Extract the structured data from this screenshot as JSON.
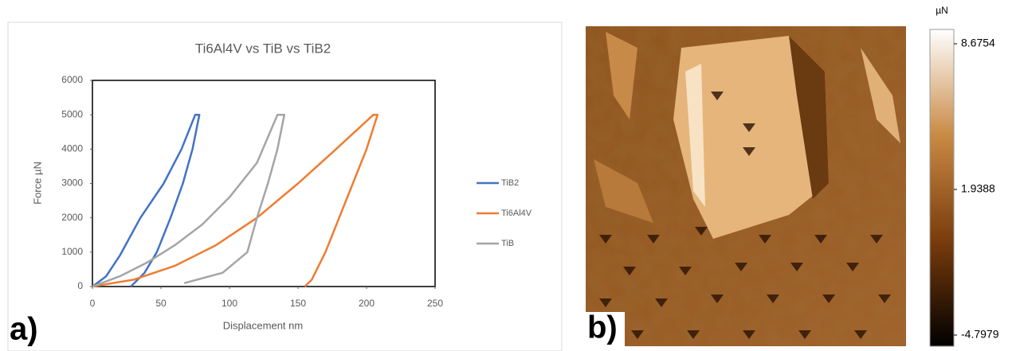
{
  "chart_data": [
    {
      "type": "line",
      "title": "Ti6Al4V vs TiB vs TiB2",
      "x_label": "Displacement nm",
      "y_label": "Force µN",
      "panel_label": "a)",
      "xlim": [
        0,
        250
      ],
      "xticks": [
        0,
        50,
        100,
        150,
        200,
        250
      ],
      "ylim": [
        0,
        6000
      ],
      "yticks": [
        0,
        1000,
        2000,
        3000,
        4000,
        5000,
        6000
      ],
      "grid": false,
      "legend": "right",
      "series": [
        {
          "name": "TiB2",
          "color": "#4472c4",
          "x": [
            0,
            10,
            20,
            35,
            52,
            65,
            75,
            78,
            73,
            66,
            57,
            47,
            38,
            28
          ],
          "values": [
            0,
            300,
            900,
            2000,
            3000,
            4000,
            5000,
            5000,
            4000,
            3000,
            2000,
            1000,
            400,
            0
          ]
        },
        {
          "name": "Ti6Al4V",
          "color": "#ed7d31",
          "x": [
            0,
            30,
            60,
            90,
            120,
            150,
            175,
            205,
            208,
            200,
            190,
            180,
            170,
            160,
            155
          ],
          "values": [
            0,
            200,
            600,
            1200,
            2000,
            3000,
            3900,
            5000,
            5000,
            4000,
            3000,
            2000,
            1000,
            200,
            0
          ]
        },
        {
          "name": "TiB",
          "color": "#a5a5a5",
          "x": [
            0,
            20,
            40,
            60,
            80,
            100,
            120,
            135,
            140,
            135,
            128,
            120,
            113,
            95,
            67
          ],
          "values": [
            0,
            300,
            700,
            1200,
            1800,
            2600,
            3600,
            5000,
            5000,
            4000,
            3000,
            2000,
            1000,
            400,
            100
          ]
        }
      ]
    },
    {
      "type": "colorbar",
      "label": "µN",
      "panel_label": "b)",
      "ylim": [
        -4.7979,
        8.6754
      ],
      "yticks": [
        -4.7979,
        1.9388,
        8.6754
      ],
      "colors": [
        "#000000",
        "#7a3c0c",
        "#c98a45",
        "#ffffff"
      ]
    }
  ]
}
